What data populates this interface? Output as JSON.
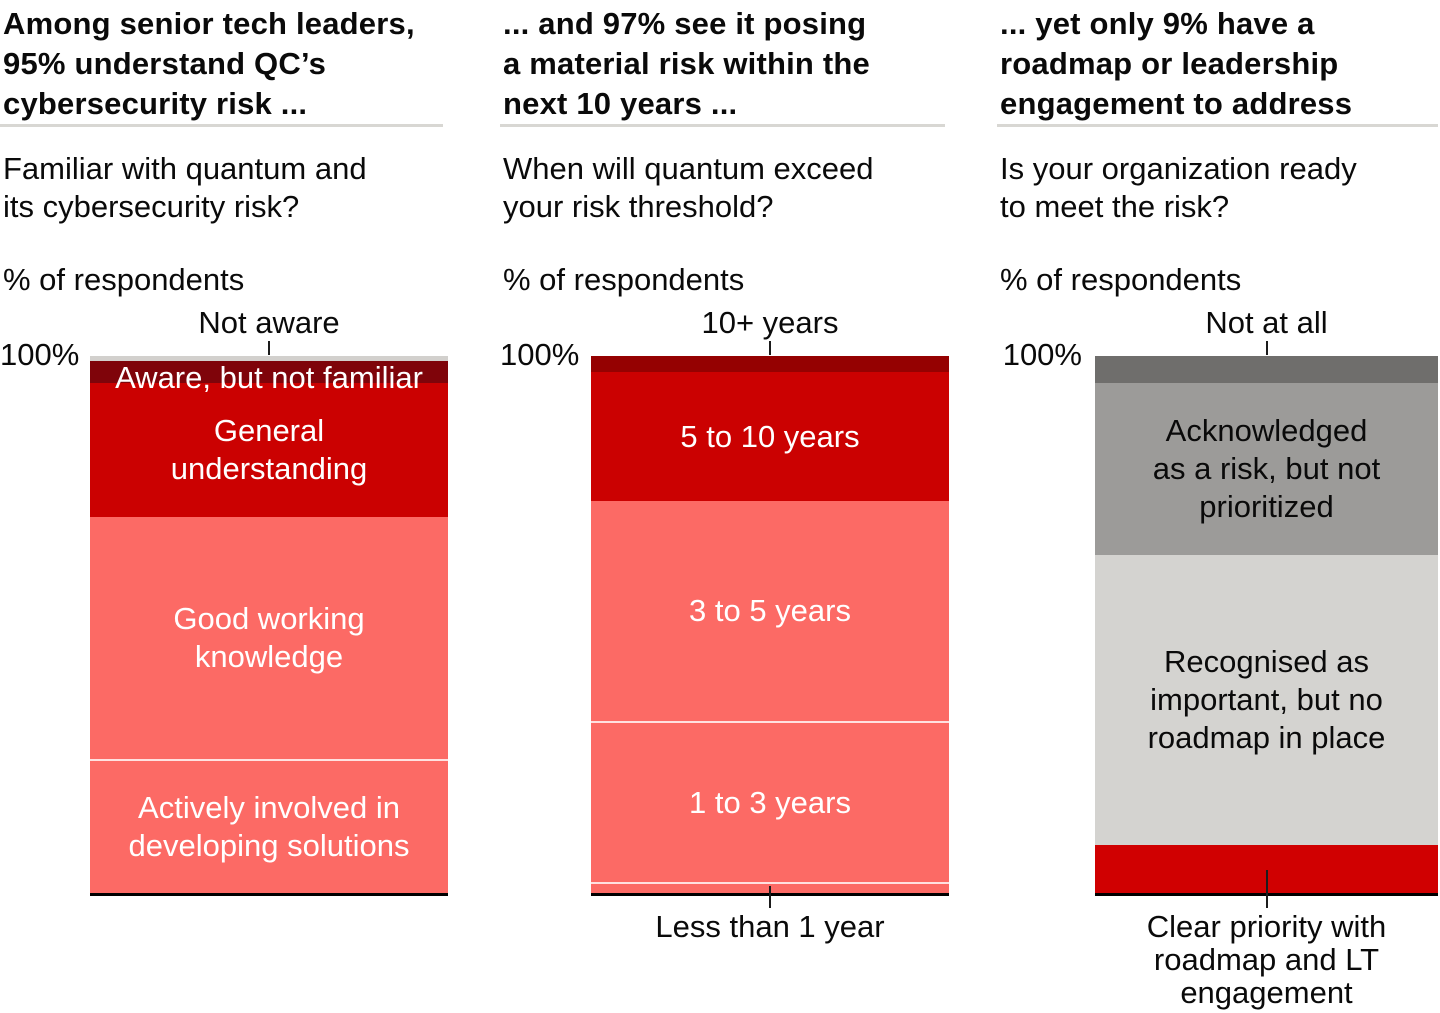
{
  "panels": [
    {
      "id": "familiarity",
      "header": "Among senior tech leaders,\n95% understand QC’s\ncybersecurity risk ...",
      "question": "Familiar with quantum and\nits cybersecurity risk?",
      "unit_label": "% of respondents",
      "axis_top_label": "100%",
      "top_callout": "Not aware",
      "bottom_callout": ""
    },
    {
      "id": "risk-timing",
      "header": "... and 97% see it posing\na material risk within the\nnext 10 years ...",
      "question": "When will quantum exceed\nyour risk threshold?",
      "unit_label": "% of respondents",
      "axis_top_label": "100%",
      "top_callout": "10+ years",
      "bottom_callout": "Less than 1 year"
    },
    {
      "id": "readiness",
      "header": "... yet only 9% have a\nroadmap or leadership\nengagement to address",
      "question": "Is your organization ready\nto meet the risk?",
      "unit_label": "% of respondents",
      "axis_top_label": "100%",
      "top_callout": "Not at all",
      "bottom_callout": "Clear priority with\nroadmap and LT\nengagement"
    }
  ],
  "chart_data": [
    {
      "type": "bar",
      "stacked": true,
      "title": "Familiar with quantum and its cybersecurity risk?",
      "ylabel": "% of respondents",
      "ylim": [
        0,
        100
      ],
      "segments": [
        {
          "label": "Not aware",
          "value": 1,
          "color": "#d2d0cd",
          "label_pos": "callout-top"
        },
        {
          "label": "Aware, but not familiar",
          "value": 4,
          "color": "#7f040a",
          "text_color": "#ffffff",
          "label_pos": "inside-top"
        },
        {
          "label": "General understanding",
          "display": "General\nunderstanding",
          "value": 25,
          "color": "#cb0101",
          "text_color": "#ffffff"
        },
        {
          "label": "Good working knowledge",
          "display": "Good working\nknowledge",
          "value": 45,
          "color": "#fc6a65",
          "text_color": "#ffffff"
        },
        {
          "label": "Actively involved in developing solutions",
          "display": "Actively involved in\ndeveloping solutions",
          "value": 25,
          "color": "#fc6a65",
          "text_color": "#ffffff",
          "divider_top": true
        }
      ]
    },
    {
      "type": "bar",
      "stacked": true,
      "title": "When will quantum exceed your risk threshold?",
      "ylabel": "% of respondents",
      "ylim": [
        0,
        100
      ],
      "segments": [
        {
          "label": "10+ years",
          "value": 3,
          "color": "#950101",
          "label_pos": "callout-top"
        },
        {
          "label": "5 to 10 years",
          "value": 24,
          "color": "#cb0101",
          "text_color": "#ffffff"
        },
        {
          "label": "3 to 5 years",
          "value": 41,
          "color": "#fc6a65",
          "text_color": "#ffffff"
        },
        {
          "label": "1 to 3 years",
          "value": 30,
          "color": "#fc6a65",
          "text_color": "#ffffff",
          "divider_top": true
        },
        {
          "label": "Less than 1 year",
          "value": 2,
          "color": "#fc6a65",
          "label_pos": "callout-bottom",
          "divider_top": true
        }
      ]
    },
    {
      "type": "bar",
      "stacked": true,
      "title": "Is your organization ready to meet the risk?",
      "ylabel": "% of respondents",
      "ylim": [
        0,
        100
      ],
      "segments": [
        {
          "label": "Not at all",
          "value": 5,
          "color": "#6f6e6c",
          "label_pos": "callout-top"
        },
        {
          "label": "Acknowledged as a risk, but not prioritized",
          "display": "Acknowledged\nas a risk, but not\nprioritized",
          "value": 32,
          "color": "#9c9b99",
          "text_color": "#0a0a0a"
        },
        {
          "label": "Recognised as important, but no roadmap in place",
          "display": "Recognised as\nimportant, but no\nroadmap in place",
          "value": 54,
          "color": "#d4d3d0",
          "text_color": "#0a0a0a"
        },
        {
          "label": "Clear priority with roadmap and LT engagement",
          "value": 9,
          "color": "#d00001",
          "label_pos": "callout-bottom"
        }
      ]
    }
  ],
  "colors": {
    "dark_maroon": "#7f040a",
    "maroon": "#950101",
    "red": "#cb0101",
    "bright_red": "#d00001",
    "pink": "#fc6a65",
    "light_gray_segment": "#d2d0cd",
    "dark_gray": "#6f6e6c",
    "mid_gray": "#9c9b99",
    "light_gray": "#d4d3d0",
    "header_rule": "#d8d7d3",
    "axis_line": "#000000"
  }
}
